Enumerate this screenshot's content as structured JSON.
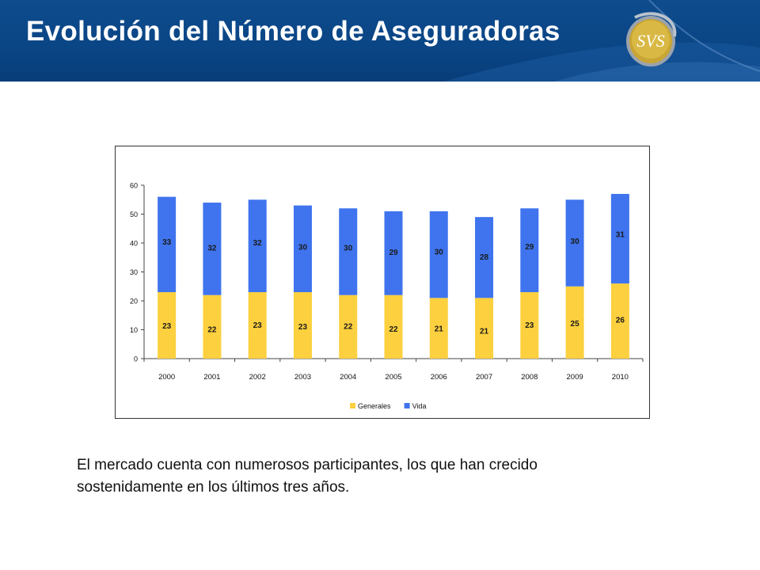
{
  "header": {
    "title": "Evolución del Número de Aseguradoras",
    "logo_text": "SVS",
    "bg_color": "#0b4787"
  },
  "chart_data": {
    "type": "bar",
    "stacked": true,
    "categories": [
      "2000",
      "2001",
      "2002",
      "2003",
      "2004",
      "2005",
      "2006",
      "2007",
      "2008",
      "2009",
      "2010"
    ],
    "series": [
      {
        "name": "Generales",
        "color": "#fcd03e",
        "values": [
          23,
          22,
          23,
          23,
          22,
          22,
          21,
          21,
          23,
          25,
          26
        ]
      },
      {
        "name": "Vida",
        "color": "#3f74ee",
        "values": [
          33,
          32,
          32,
          30,
          30,
          29,
          30,
          28,
          29,
          30,
          31
        ]
      }
    ],
    "yticks": [
      0,
      10,
      20,
      30,
      40,
      50,
      60
    ],
    "ylim": [
      0,
      60
    ],
    "legend_position": "bottom",
    "title": "",
    "xlabel": "",
    "ylabel": ""
  },
  "body_text": {
    "line1": "El mercado cuenta con numerosos participantes, los que han crecido",
    "line2": "sostenidamente en los últimos tres años."
  }
}
